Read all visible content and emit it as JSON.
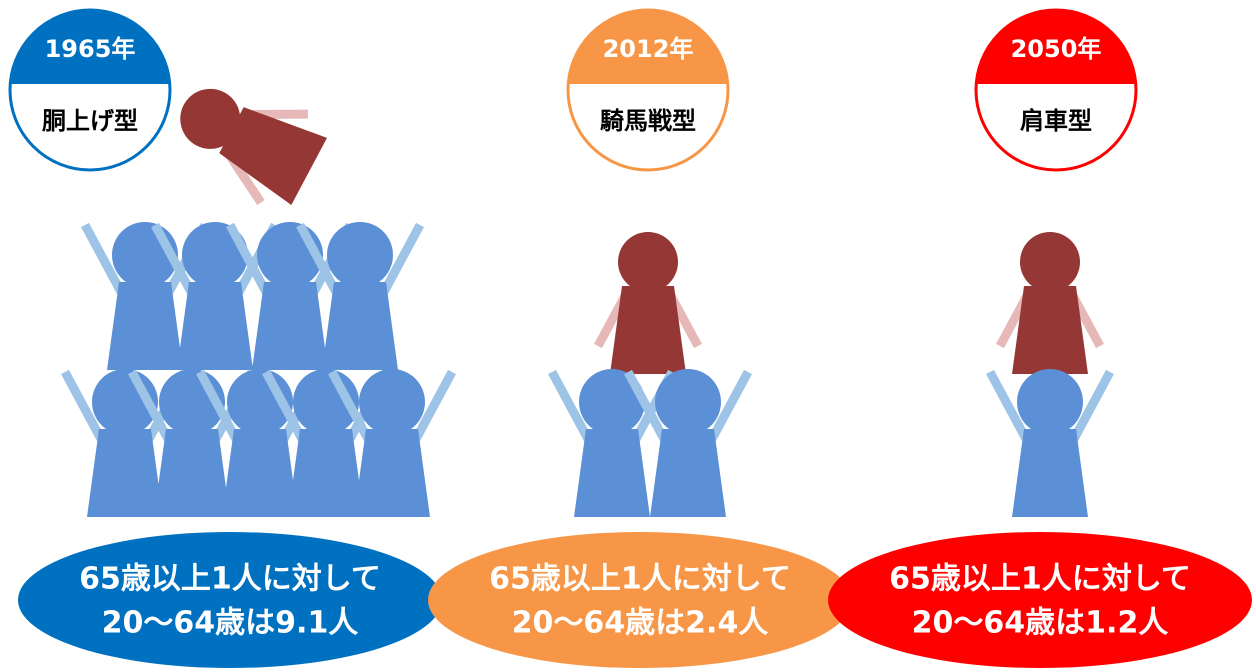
{
  "panels": [
    {
      "year": "1965年",
      "style": "胴上げ型",
      "caption": [
        "65歳以上1人に対して",
        "20～64歳は9.1人"
      ]
    },
    {
      "year": "2012年",
      "style": "騎馬戦型",
      "caption": [
        "65歳以上1人に対して",
        "20～64歳は2.4人"
      ]
    },
    {
      "year": "2050年",
      "style": "肩車型",
      "caption": [
        "65歳以上1人に対して",
        "20～64歳は1.2人"
      ]
    }
  ]
}
